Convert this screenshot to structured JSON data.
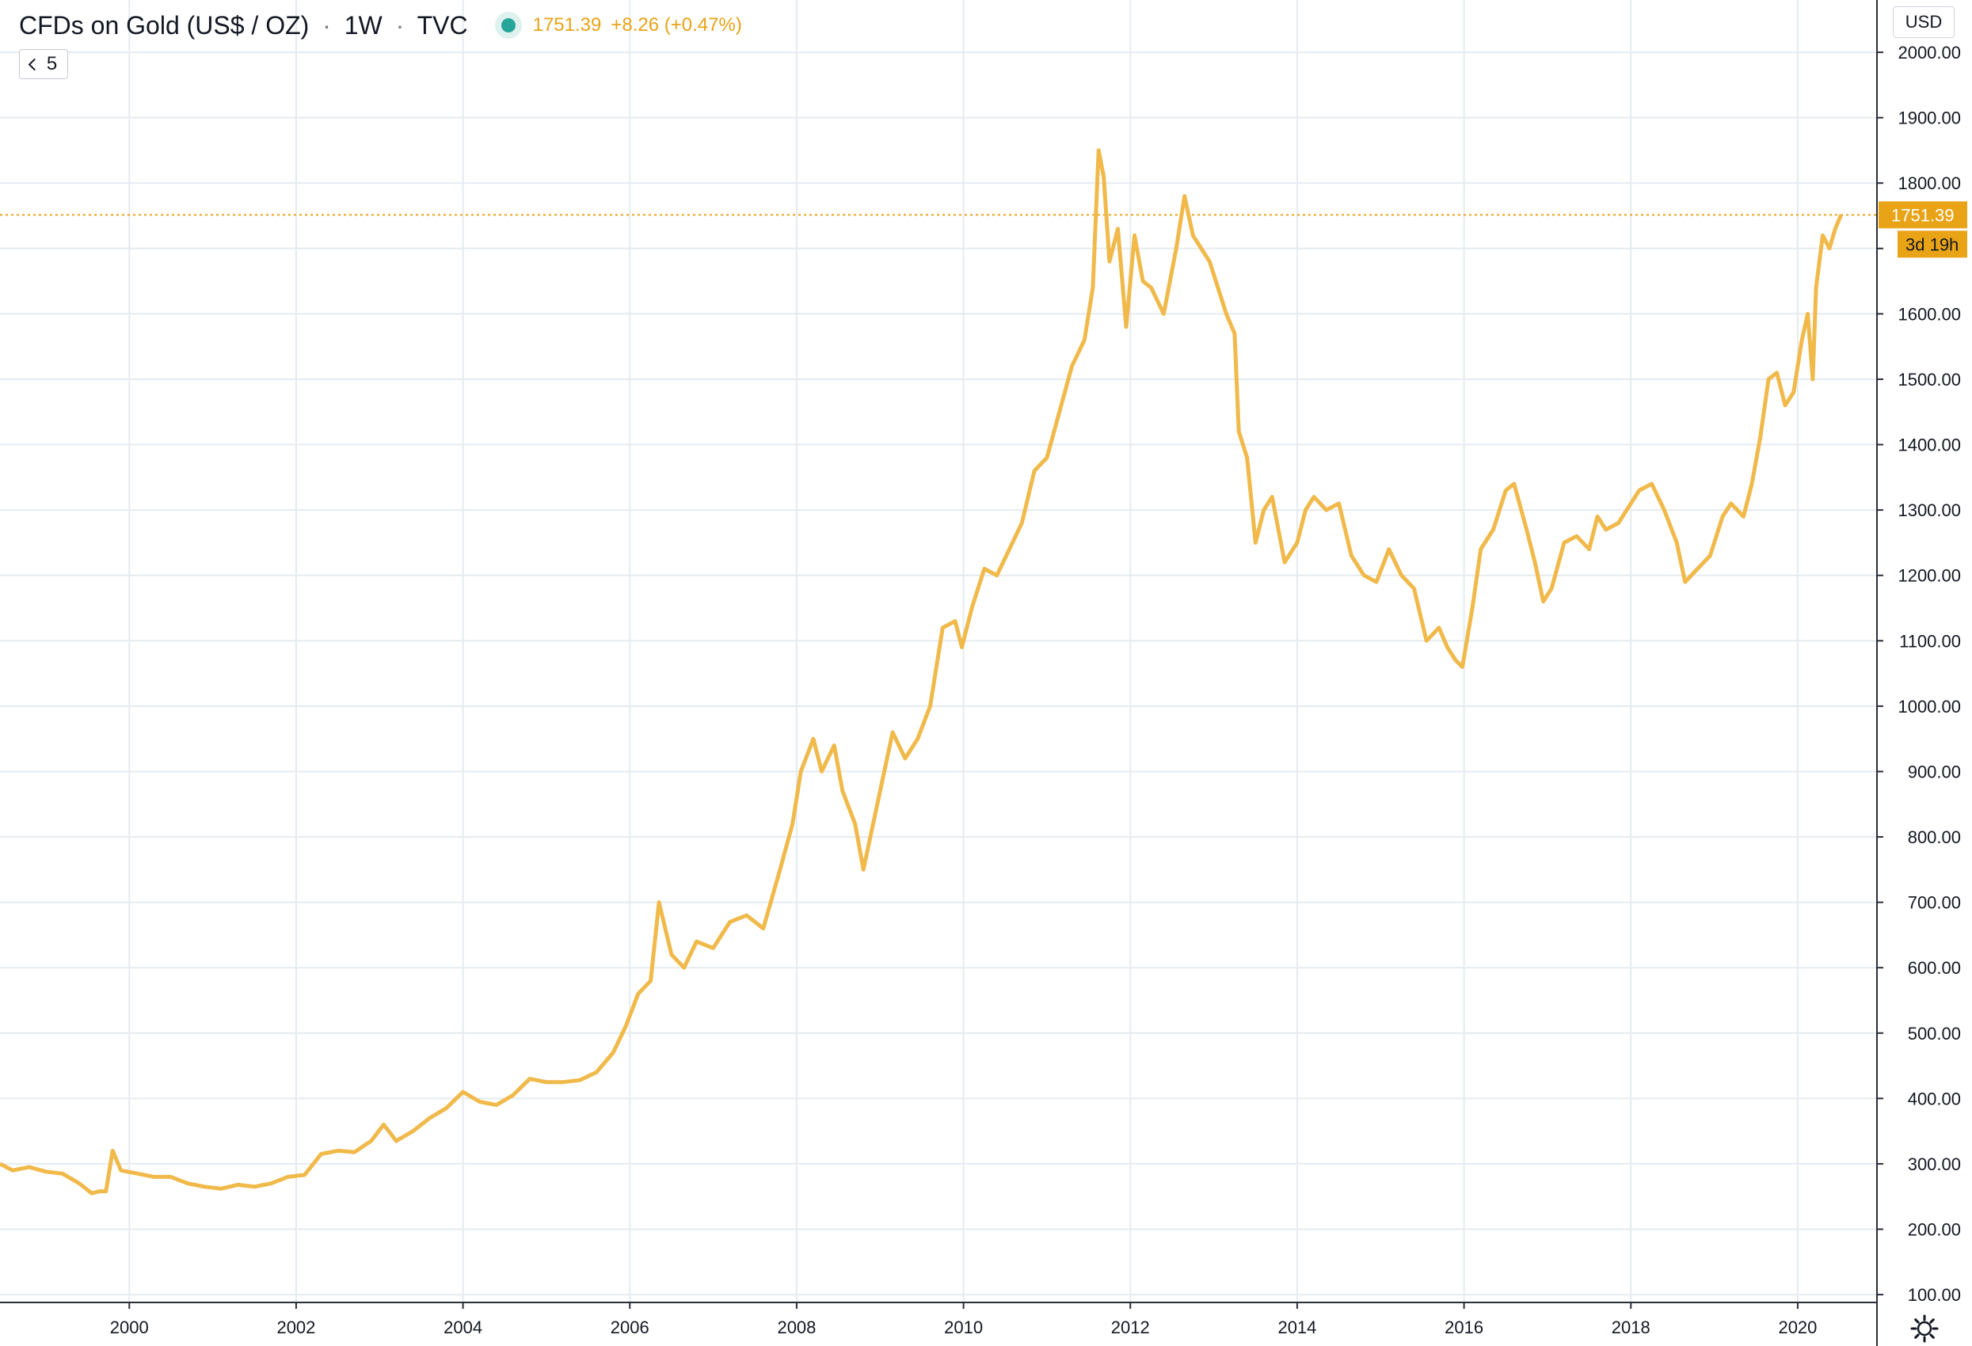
{
  "header": {
    "symbol": "CFDs on Gold (US$ / OZ)",
    "interval": "1W",
    "exchange": "TVC",
    "separator": "·",
    "last_price": "1751.39",
    "change": "+8.26 (+0.47%)"
  },
  "indicators_toggle": {
    "count": "5"
  },
  "currency_button": "USD",
  "price_label": "1751.39",
  "countdown_label": "3d 19h",
  "colors": {
    "line": "#f0b94a",
    "accent": "#e8a317",
    "grid": "#e5ebf0",
    "axis_text": "#131722",
    "status_dot": "#26a69a"
  },
  "chart_data": {
    "type": "line",
    "title": "CFDs on Gold (US$ / OZ)",
    "xlabel": "",
    "ylabel": "",
    "x_tick_labels": [
      "2000",
      "2002",
      "2004",
      "2006",
      "2008",
      "2010",
      "2012",
      "2014",
      "2016",
      "2018",
      "2020"
    ],
    "y_tick_labels": [
      "100.00",
      "200.00",
      "300.00",
      "400.00",
      "500.00",
      "600.00",
      "700.00",
      "800.00",
      "900.00",
      "1000.00",
      "1100.00",
      "1200.00",
      "1300.00",
      "1400.00",
      "1500.00",
      "1600.00",
      "1700.00",
      "1800.00",
      "1900.00",
      "2000.00"
    ],
    "xlim": [
      1998.45,
      2020.95
    ],
    "ylim": [
      88,
      2080
    ],
    "grid": true,
    "last_value": 1751.39,
    "series": [
      {
        "x": [
          1998.45,
          1998.6,
          1998.8,
          1999.0,
          1999.2,
          1999.4,
          1999.55,
          1999.65,
          1999.72,
          1999.8,
          1999.9,
          2000.1,
          2000.3,
          2000.5,
          2000.7,
          2000.9,
          2001.1,
          2001.3,
          2001.5,
          2001.7,
          2001.9,
          2002.1,
          2002.3,
          2002.5,
          2002.7,
          2002.9,
          2003.05,
          2003.2,
          2003.4,
          2003.6,
          2003.8,
          2004.0,
          2004.2,
          2004.4,
          2004.6,
          2004.8,
          2005.0,
          2005.2,
          2005.4,
          2005.6,
          2005.8,
          2005.95,
          2006.1,
          2006.25,
          2006.35,
          2006.5,
          2006.65,
          2006.8,
          2007.0,
          2007.2,
          2007.4,
          2007.6,
          2007.8,
          2007.95,
          2008.05,
          2008.2,
          2008.3,
          2008.45,
          2008.55,
          2008.7,
          2008.8,
          2008.9,
          2009.0,
          2009.15,
          2009.3,
          2009.45,
          2009.6,
          2009.75,
          2009.9,
          2009.98,
          2010.1,
          2010.25,
          2010.4,
          2010.55,
          2010.7,
          2010.85,
          2011.0,
          2011.15,
          2011.3,
          2011.45,
          2011.55,
          2011.62,
          2011.68,
          2011.75,
          2011.85,
          2011.95,
          2012.05,
          2012.15,
          2012.25,
          2012.4,
          2012.55,
          2012.65,
          2012.75,
          2012.85,
          2012.95,
          2013.05,
          2013.15,
          2013.25,
          2013.3,
          2013.4,
          2013.5,
          2013.6,
          2013.7,
          2013.85,
          2014.0,
          2014.1,
          2014.2,
          2014.35,
          2014.5,
          2014.65,
          2014.8,
          2014.95,
          2015.1,
          2015.25,
          2015.4,
          2015.55,
          2015.7,
          2015.8,
          2015.9,
          2015.98,
          2016.1,
          2016.2,
          2016.35,
          2016.5,
          2016.6,
          2016.75,
          2016.85,
          2016.95,
          2017.05,
          2017.2,
          2017.35,
          2017.5,
          2017.6,
          2017.7,
          2017.85,
          2017.95,
          2018.1,
          2018.25,
          2018.4,
          2018.55,
          2018.65,
          2018.8,
          2018.95,
          2019.1,
          2019.2,
          2019.35,
          2019.45,
          2019.55,
          2019.65,
          2019.75,
          2019.85,
          2019.95,
          2020.05,
          2020.12,
          2020.18,
          2020.22,
          2020.3,
          2020.38,
          2020.45,
          2020.52
        ],
        "values": [
          300,
          290,
          295,
          288,
          285,
          270,
          255,
          258,
          258,
          320,
          290,
          285,
          280,
          280,
          270,
          265,
          262,
          268,
          265,
          270,
          280,
          283,
          315,
          320,
          318,
          335,
          360,
          335,
          350,
          370,
          385,
          410,
          395,
          390,
          405,
          430,
          425,
          425,
          428,
          440,
          470,
          510,
          560,
          580,
          700,
          620,
          600,
          640,
          630,
          670,
          680,
          660,
          750,
          820,
          900,
          950,
          900,
          940,
          870,
          820,
          750,
          810,
          870,
          960,
          920,
          950,
          1000,
          1120,
          1130,
          1090,
          1150,
          1210,
          1200,
          1240,
          1280,
          1360,
          1380,
          1450,
          1520,
          1560,
          1640,
          1850,
          1810,
          1680,
          1730,
          1580,
          1720,
          1650,
          1640,
          1600,
          1700,
          1780,
          1720,
          1700,
          1680,
          1640,
          1600,
          1570,
          1420,
          1380,
          1250,
          1300,
          1320,
          1220,
          1250,
          1300,
          1320,
          1300,
          1310,
          1230,
          1200,
          1190,
          1240,
          1200,
          1180,
          1100,
          1120,
          1090,
          1070,
          1060,
          1150,
          1240,
          1270,
          1330,
          1340,
          1270,
          1220,
          1160,
          1180,
          1250,
          1260,
          1240,
          1290,
          1270,
          1280,
          1300,
          1330,
          1340,
          1300,
          1250,
          1190,
          1210,
          1230,
          1290,
          1310,
          1290,
          1340,
          1410,
          1500,
          1510,
          1460,
          1480,
          1560,
          1600,
          1500,
          1640,
          1720,
          1700,
          1730,
          1751.39
        ]
      }
    ]
  }
}
